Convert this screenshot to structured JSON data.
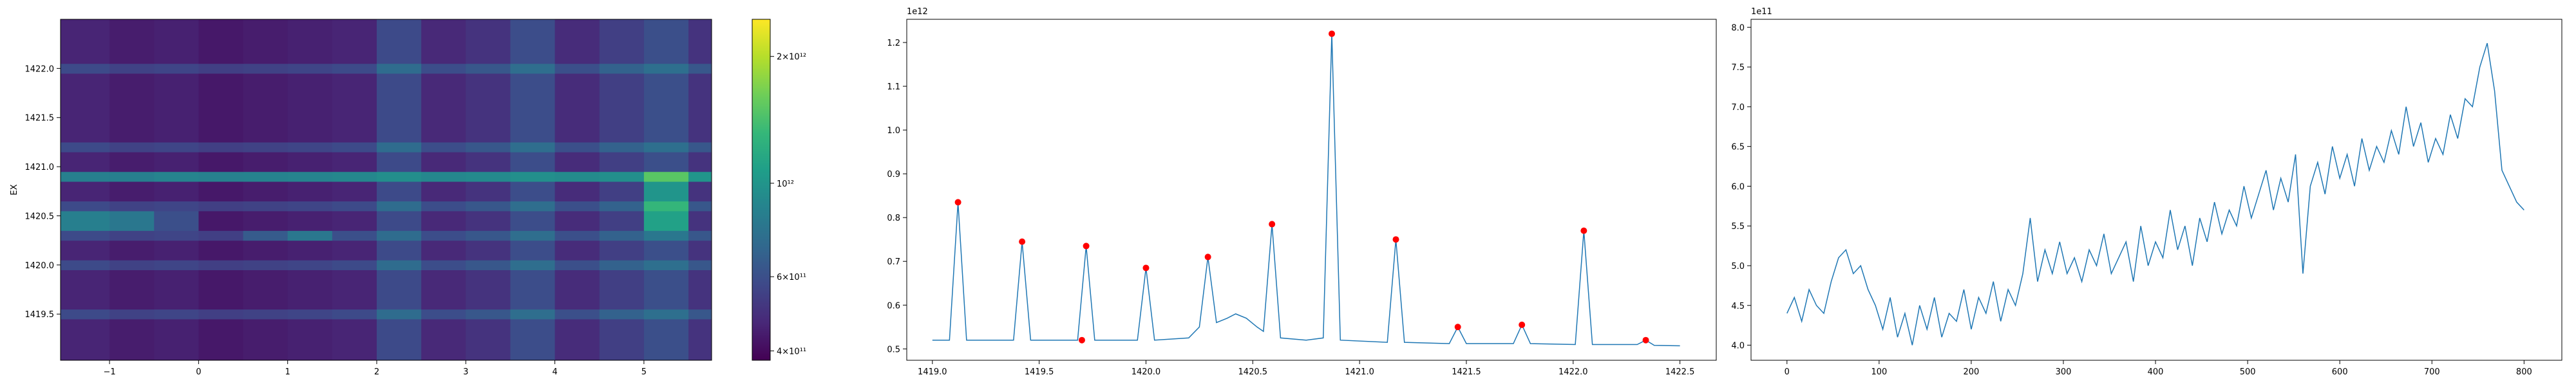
{
  "chart_data": [
    {
      "type": "heatmap",
      "ylabel": "EX",
      "colormap": "viridis",
      "x_edges": [
        -1.55,
        -1.0,
        -0.5,
        0,
        0.5,
        1,
        1.5,
        2,
        2.5,
        3,
        3.5,
        4,
        4.5,
        5,
        5.5,
        5.76
      ],
      "y_edges": [
        1419.03,
        1419.45,
        1419.55,
        1419.95,
        1420.05,
        1420.25,
        1420.35,
        1420.55,
        1420.65,
        1420.85,
        1420.95,
        1421.15,
        1421.25,
        1421.95,
        1422.05,
        1422.5
      ],
      "z": [
        [
          460000000000.0,
          440000000000.0,
          450000000000.0,
          430000000000.0,
          440000000000.0,
          450000000000.0,
          460000000000.0,
          580000000000.0,
          470000000000.0,
          500000000000.0,
          590000000000.0,
          480000000000.0,
          540000000000.0,
          600000000000.0,
          500000000000.0
        ],
        [
          580000000000.0,
          550000000000.0,
          560000000000.0,
          540000000000.0,
          550000000000.0,
          560000000000.0,
          580000000000.0,
          730000000000.0,
          590000000000.0,
          630000000000.0,
          740000000000.0,
          600000000000.0,
          680000000000.0,
          750000000000.0,
          630000000000.0
        ],
        [
          460000000000.0,
          440000000000.0,
          450000000000.0,
          430000000000.0,
          440000000000.0,
          450000000000.0,
          460000000000.0,
          580000000000.0,
          470000000000.0,
          500000000000.0,
          590000000000.0,
          480000000000.0,
          540000000000.0,
          600000000000.0,
          500000000000.0
        ],
        [
          580000000000.0,
          550000000000.0,
          560000000000.0,
          540000000000.0,
          550000000000.0,
          560000000000.0,
          580000000000.0,
          730000000000.0,
          590000000000.0,
          630000000000.0,
          740000000000.0,
          600000000000.0,
          680000000000.0,
          750000000000.0,
          630000000000.0
        ],
        [
          460000000000.0,
          440000000000.0,
          450000000000.0,
          430000000000.0,
          440000000000.0,
          450000000000.0,
          460000000000.0,
          580000000000.0,
          470000000000.0,
          500000000000.0,
          590000000000.0,
          480000000000.0,
          540000000000.0,
          600000000000.0,
          500000000000.0
        ],
        [
          580000000000.0,
          550000000000.0,
          560000000000.0,
          540000000000.0,
          650000000000.0,
          800000000000.0,
          600000000000.0,
          730000000000.0,
          590000000000.0,
          630000000000.0,
          740000000000.0,
          600000000000.0,
          680000000000.0,
          800000000000.0,
          630000000000.0
        ],
        [
          850000000000.0,
          800000000000.0,
          600000000000.0,
          430000000000.0,
          440000000000.0,
          450000000000.0,
          460000000000.0,
          580000000000.0,
          470000000000.0,
          500000000000.0,
          590000000000.0,
          480000000000.0,
          540000000000.0,
          1100000000000.0,
          500000000000.0
        ],
        [
          580000000000.0,
          550000000000.0,
          560000000000.0,
          540000000000.0,
          550000000000.0,
          560000000000.0,
          580000000000.0,
          730000000000.0,
          590000000000.0,
          630000000000.0,
          740000000000.0,
          600000000000.0,
          680000000000.0,
          1300000000000.0,
          630000000000.0
        ],
        [
          460000000000.0,
          440000000000.0,
          450000000000.0,
          430000000000.0,
          440000000000.0,
          450000000000.0,
          460000000000.0,
          580000000000.0,
          470000000000.0,
          500000000000.0,
          590000000000.0,
          480000000000.0,
          540000000000.0,
          1000000000000.0,
          500000000000.0
        ],
        [
          850000000000.0,
          850000000000.0,
          880000000000.0,
          860000000000.0,
          870000000000.0,
          880000000000.0,
          900000000000.0,
          950000000000.0,
          900000000000.0,
          920000000000.0,
          960000000000.0,
          930000000000.0,
          960000000000.0,
          1500000000000.0,
          1000000000000.0
        ],
        [
          460000000000.0,
          440000000000.0,
          450000000000.0,
          430000000000.0,
          440000000000.0,
          450000000000.0,
          460000000000.0,
          580000000000.0,
          470000000000.0,
          500000000000.0,
          590000000000.0,
          480000000000.0,
          540000000000.0,
          600000000000.0,
          500000000000.0
        ],
        [
          580000000000.0,
          550000000000.0,
          560000000000.0,
          540000000000.0,
          550000000000.0,
          560000000000.0,
          580000000000.0,
          730000000000.0,
          590000000000.0,
          630000000000.0,
          740000000000.0,
          600000000000.0,
          680000000000.0,
          750000000000.0,
          630000000000.0
        ],
        [
          460000000000.0,
          440000000000.0,
          450000000000.0,
          430000000000.0,
          440000000000.0,
          450000000000.0,
          460000000000.0,
          580000000000.0,
          470000000000.0,
          500000000000.0,
          590000000000.0,
          480000000000.0,
          540000000000.0,
          600000000000.0,
          500000000000.0
        ],
        [
          580000000000.0,
          550000000000.0,
          560000000000.0,
          540000000000.0,
          550000000000.0,
          560000000000.0,
          580000000000.0,
          730000000000.0,
          590000000000.0,
          630000000000.0,
          740000000000.0,
          600000000000.0,
          680000000000.0,
          750000000000.0,
          630000000000.0
        ],
        [
          460000000000.0,
          440000000000.0,
          450000000000.0,
          430000000000.0,
          440000000000.0,
          450000000000.0,
          460000000000.0,
          580000000000.0,
          470000000000.0,
          500000000000.0,
          590000000000.0,
          480000000000.0,
          540000000000.0,
          600000000000.0,
          500000000000.0
        ]
      ],
      "xlim": [
        -1.55,
        5.76
      ],
      "ylim": [
        1419.03,
        1422.5
      ],
      "xticks": [
        {
          "value": -1,
          "label": "−1"
        },
        0,
        1,
        2,
        3,
        4,
        5
      ],
      "yticks": [
        1419.5,
        {
          "value": 1420,
          "label": "1420.0"
        },
        1420.5,
        {
          "value": 1421,
          "label": "1421.0"
        },
        1421.5,
        {
          "value": 1422,
          "label": "1422.0"
        }
      ],
      "colorbar": {
        "scale": "log",
        "lim": [
          380000000000.0,
          2450000000000.0
        ],
        "ticks": [
          {
            "value": 400000000000.0,
            "label": "4×10¹¹"
          },
          {
            "value": 600000000000.0,
            "label": "6×10¹¹"
          },
          {
            "value": 1000000000000.0,
            "label": "10¹²"
          },
          {
            "value": 2000000000000.0,
            "label": "2×10¹²"
          }
        ]
      }
    },
    {
      "type": "line",
      "y_offset_label": "1e12",
      "xlim": [
        1418.88,
        1422.67
      ],
      "ylim": [
        0.474,
        1.253
      ],
      "xticks": [
        {
          "value": 1419,
          "label": "1419.0"
        },
        1419.5,
        {
          "value": 1420,
          "label": "1420.0"
        },
        1420.5,
        {
          "value": 1421,
          "label": "1421.0"
        },
        1421.5,
        {
          "value": 1422,
          "label": "1422.0"
        },
        1422.5
      ],
      "yticks": [
        0.5,
        0.6,
        0.7,
        0.8,
        0.9,
        {
          "value": 1,
          "label": "1.0"
        },
        1.1,
        1.2
      ],
      "series": [
        {
          "color": "#1f77b4",
          "style": "line",
          "x": [
            1419.0,
            1419.08,
            1419.12,
            1419.16,
            1419.38,
            1419.42,
            1419.46,
            1419.68,
            1419.72,
            1419.76,
            1419.96,
            1420.0,
            1420.04,
            1420.2,
            1420.25,
            1420.29,
            1420.33,
            1420.38,
            1420.42,
            1420.47,
            1420.52,
            1420.55,
            1420.59,
            1420.63,
            1420.75,
            1420.83,
            1420.87,
            1420.91,
            1421.13,
            1421.17,
            1421.21,
            1421.42,
            1421.46,
            1421.5,
            1421.72,
            1421.76,
            1421.8,
            1422.01,
            1422.05,
            1422.09,
            1422.3,
            1422.34,
            1422.38,
            1422.5
          ],
          "values": [
            0.52,
            0.52,
            0.835,
            0.52,
            0.52,
            0.745,
            0.52,
            0.52,
            0.735,
            0.52,
            0.52,
            0.685,
            0.52,
            0.525,
            0.55,
            0.71,
            0.56,
            0.57,
            0.58,
            0.57,
            0.55,
            0.54,
            0.785,
            0.525,
            0.52,
            0.525,
            1.22,
            0.52,
            0.515,
            0.75,
            0.515,
            0.512,
            0.55,
            0.512,
            0.512,
            0.555,
            0.512,
            0.51,
            0.77,
            0.51,
            0.51,
            0.52,
            0.508,
            0.507
          ]
        },
        {
          "color": "red",
          "style": "markers",
          "x": [
            1419.12,
            1419.42,
            1419.7,
            1419.72,
            1420.0,
            1420.29,
            1420.59,
            1420.87,
            1421.17,
            1421.46,
            1421.76,
            1422.05,
            1422.34
          ],
          "values": [
            0.835,
            0.745,
            0.52,
            0.735,
            0.685,
            0.71,
            0.785,
            1.22,
            0.75,
            0.55,
            0.555,
            0.77,
            0.52
          ]
        }
      ]
    },
    {
      "type": "line",
      "y_offset_label": "1e11",
      "xlim": [
        -39,
        841
      ],
      "ylim": [
        3.81,
        8.1
      ],
      "xticks": [
        0,
        100,
        200,
        300,
        400,
        500,
        600,
        700,
        800
      ],
      "yticks": [
        {
          "value": 4,
          "label": "4.0"
        },
        4.5,
        {
          "value": 5,
          "label": "5.0"
        },
        5.5,
        {
          "value": 6,
          "label": "6.0"
        },
        6.5,
        {
          "value": 7,
          "label": "7.0"
        },
        7.5,
        {
          "value": 8,
          "label": "8.0"
        }
      ],
      "series": [
        {
          "color": "#1f77b4",
          "style": "line",
          "x": [
            0,
            8,
            16,
            24,
            32,
            40,
            48,
            56,
            64,
            72,
            80,
            88,
            96,
            104,
            112,
            120,
            128,
            136,
            144,
            152,
            160,
            168,
            176,
            184,
            192,
            200,
            208,
            216,
            224,
            232,
            240,
            248,
            256,
            264,
            272,
            280,
            288,
            296,
            304,
            312,
            320,
            328,
            336,
            344,
            352,
            360,
            368,
            376,
            384,
            392,
            400,
            408,
            416,
            424,
            432,
            440,
            448,
            456,
            464,
            472,
            480,
            488,
            496,
            504,
            512,
            520,
            528,
            536,
            544,
            552,
            560,
            568,
            576,
            584,
            592,
            600,
            608,
            616,
            624,
            632,
            640,
            648,
            656,
            664,
            672,
            680,
            688,
            696,
            704,
            712,
            720,
            728,
            736,
            744,
            752,
            760,
            768,
            776,
            784,
            792,
            800
          ],
          "values": [
            4.4,
            4.6,
            4.3,
            4.7,
            4.5,
            4.4,
            4.8,
            5.1,
            5.2,
            4.9,
            5.0,
            4.7,
            4.5,
            4.2,
            4.6,
            4.1,
            4.4,
            4.0,
            4.5,
            4.2,
            4.6,
            4.1,
            4.4,
            4.3,
            4.7,
            4.2,
            4.6,
            4.4,
            4.8,
            4.3,
            4.7,
            4.5,
            4.9,
            5.6,
            4.8,
            5.2,
            4.9,
            5.3,
            4.9,
            5.1,
            4.8,
            5.2,
            5.0,
            5.4,
            4.9,
            5.1,
            5.3,
            4.8,
            5.5,
            5.0,
            5.3,
            5.1,
            5.7,
            5.2,
            5.5,
            5.0,
            5.6,
            5.3,
            5.8,
            5.4,
            5.7,
            5.5,
            6.0,
            5.6,
            5.9,
            6.2,
            5.7,
            6.1,
            5.8,
            6.4,
            4.9,
            6.0,
            6.3,
            5.9,
            6.5,
            6.1,
            6.4,
            6.0,
            6.6,
            6.2,
            6.5,
            6.3,
            6.7,
            6.4,
            7.0,
            6.5,
            6.8,
            6.3,
            6.6,
            6.4,
            6.9,
            6.6,
            7.1,
            7.0,
            7.5,
            7.8,
            7.2,
            6.2,
            6.0,
            5.8,
            5.7
          ]
        }
      ]
    }
  ]
}
